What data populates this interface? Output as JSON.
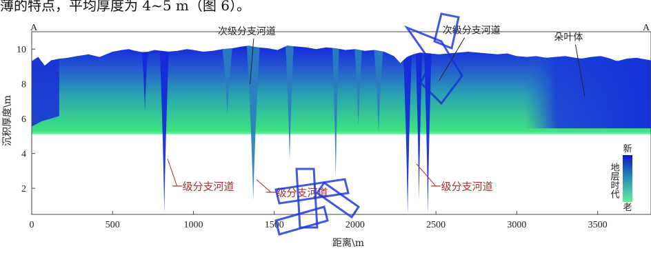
{
  "caption": "薄的特点，平均厚度为 4~5 m（图 6）。",
  "corner_labels": {
    "left": "A",
    "right": "A"
  },
  "watermark": "中国知网",
  "colors": {
    "new": "#1530d8",
    "mid": "#2a86b8",
    "old": "#40e87c",
    "annotation_red": "#b03030",
    "axis": "#333333"
  },
  "chart_data": {
    "type": "area",
    "xlabel": "距离\\m",
    "ylabel": "沉积厚度\\m",
    "xlim": [
      0,
      3830
    ],
    "ylim": [
      0.5,
      11.0
    ],
    "xticks": [
      0,
      500,
      1000,
      1500,
      2000,
      2500,
      3000,
      3500
    ],
    "yticks": [
      2,
      4,
      6,
      8,
      10
    ],
    "base_level": 5.15,
    "top_surface": {
      "x": [
        0,
        40,
        80,
        120,
        170,
        220,
        280,
        350,
        420,
        500,
        560,
        600,
        640,
        700,
        760,
        840,
        900,
        960,
        1000,
        1060,
        1120,
        1180,
        1240,
        1300,
        1340,
        1400,
        1460,
        1520,
        1580,
        1640,
        1700,
        1760,
        1820,
        1880,
        1940,
        2000,
        2060,
        2120,
        2180,
        2240,
        2280,
        2320,
        2360,
        2400,
        2460,
        2520,
        2580,
        2640,
        2700,
        2760,
        2820,
        2880,
        2940,
        3000,
        3060,
        3120,
        3180,
        3240,
        3300,
        3360,
        3400,
        3460,
        3520,
        3580,
        3620,
        3680,
        3740,
        3800,
        3830
      ],
      "y": [
        9.3,
        9.55,
        9.05,
        9.35,
        9.45,
        9.5,
        9.6,
        9.7,
        9.55,
        9.85,
        9.95,
        10.0,
        9.9,
        9.8,
        9.95,
        9.85,
        9.9,
        10.0,
        9.95,
        9.85,
        9.9,
        10.0,
        10.05,
        10.15,
        10.2,
        10.1,
        10.05,
        9.95,
        10.2,
        10.15,
        10.1,
        10.0,
        10.1,
        10.05,
        9.95,
        10.0,
        9.9,
        9.95,
        9.85,
        9.6,
        9.2,
        9.55,
        9.7,
        9.8,
        9.75,
        9.7,
        9.75,
        9.8,
        9.85,
        9.8,
        9.75,
        9.7,
        9.75,
        9.6,
        9.55,
        9.6,
        9.5,
        9.55,
        9.6,
        9.5,
        9.45,
        9.55,
        9.6,
        9.45,
        9.3,
        9.45,
        9.5,
        9.4,
        9.35
      ]
    },
    "channels": [
      {
        "x": 820,
        "width": 55,
        "bottom": 0.6,
        "age": "new"
      },
      {
        "x": 1370,
        "width": 80,
        "bottom": 1.3,
        "age": "mid"
      },
      {
        "x": 1595,
        "width": 50,
        "bottom": 3.6,
        "age": "mid"
      },
      {
        "x": 1880,
        "width": 40,
        "bottom": 2.6,
        "age": "mid"
      },
      {
        "x": 2325,
        "width": 50,
        "bottom": 0.5,
        "age": "new"
      },
      {
        "x": 2395,
        "width": 40,
        "bottom": 1.3,
        "age": "new"
      },
      {
        "x": 2450,
        "width": 45,
        "bottom": 0.5,
        "age": "new"
      },
      {
        "x": 700,
        "width": 35,
        "bottom": 6.5,
        "age": "new"
      },
      {
        "x": 1210,
        "width": 60,
        "bottom": 6.2,
        "age": "mid"
      },
      {
        "x": 2020,
        "width": 45,
        "bottom": 5.6,
        "age": "mid"
      },
      {
        "x": 2145,
        "width": 55,
        "bottom": 5.2,
        "age": "mid"
      }
    ],
    "lobe": {
      "x_start": 3050,
      "x_end": 3830,
      "age": "new"
    },
    "annotations": [
      {
        "text": "次级分支河道",
        "x": 1330,
        "y": 10.85,
        "tip_x": 1350,
        "tip_y": 8.0,
        "color": "black"
      },
      {
        "text": "次级分支河道",
        "x": 2720,
        "y": 10.9,
        "tip_x": 2520,
        "tip_y": 8.2,
        "color": "black"
      },
      {
        "text": "朵叶体",
        "x": 3320,
        "y": 10.5,
        "tip_x": 3420,
        "tip_y": 7.3,
        "color": "black"
      },
      {
        "text": "一级分支河道",
        "x": 1060,
        "y": 1.9,
        "tip_x": 840,
        "tip_y": 3.7,
        "color": "red"
      },
      {
        "text": "一级分支河道",
        "x": 1640,
        "y": 1.55,
        "tip_x": 1390,
        "tip_y": 2.5,
        "color": "red"
      },
      {
        "text": "一级分支河道",
        "x": 2660,
        "y": 1.9,
        "tip_x": 2380,
        "tip_y": 3.4,
        "color": "red"
      }
    ],
    "legend": {
      "title": "地层时代",
      "top_label": "新",
      "bottom_label": "老"
    }
  }
}
